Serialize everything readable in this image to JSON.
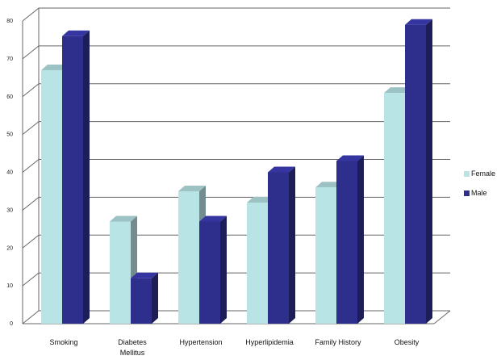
{
  "chart_data": {
    "type": "bar",
    "categories": [
      "Smoking",
      "Diabetes Mellitus",
      "Hypertension",
      "Hyperlipidemia",
      "Family History",
      "Obesity"
    ],
    "category_lines": [
      [
        "Smoking"
      ],
      [
        "Diabetes",
        "Mellitus"
      ],
      [
        "Hypertension"
      ],
      [
        "Hyperlipidemia"
      ],
      [
        "Family History"
      ],
      [
        "Obesity"
      ]
    ],
    "series": [
      {
        "name": "Female",
        "values": [
          67,
          27,
          35,
          32,
          36,
          61
        ],
        "color": "#b9e4e6"
      },
      {
        "name": "Male",
        "values": [
          76,
          12,
          27,
          40,
          43,
          79
        ],
        "color": "#2e2e8c"
      }
    ],
    "yticks": [
      "0",
      "10",
      "20",
      "30",
      "40",
      "50",
      "60",
      "70",
      "80"
    ],
    "ylim": [
      0,
      80
    ],
    "grid": true,
    "legend_position": "right",
    "style": "3d-clustered"
  },
  "legend": {
    "female_label": "Female",
    "male_label": "Male"
  }
}
